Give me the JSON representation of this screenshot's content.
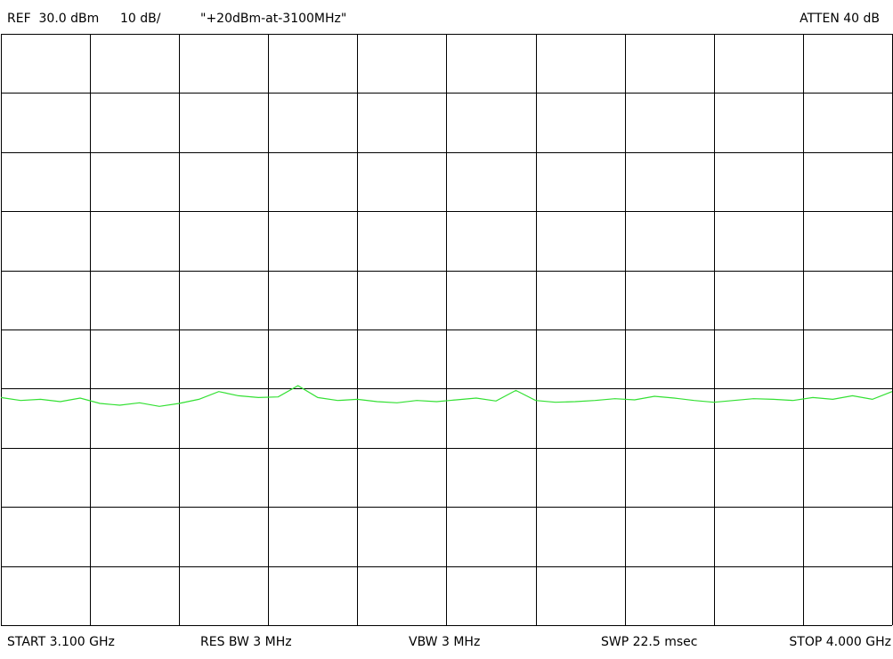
{
  "chart_data": {
    "type": "line",
    "reference_label": "REF  30.0 dBm",
    "scale_label": "10 dB/",
    "title": "\"+20dBm-at-3100MHz\"",
    "attenuation_label": "ATTEN 40 dB",
    "start_label": "START 3.100 GHz",
    "rbw_label": "RES BW 3 MHz",
    "vbw_label": "VBW 3 MHz",
    "sweep_label": "SWP 22.5 msec",
    "stop_label": "STOP 4.000 GHz",
    "xlim": [
      3.1,
      4.0
    ],
    "xticks": [
      3.1,
      3.19,
      3.28,
      3.37,
      3.46,
      3.55,
      3.64,
      3.73,
      3.82,
      3.91,
      4.0
    ],
    "ylim": [
      -70,
      30
    ],
    "yticks": [
      -70,
      -60,
      -50,
      -40,
      -30,
      -20,
      -10,
      0,
      10,
      20,
      30
    ],
    "grid": true,
    "x": [
      3.1,
      3.12,
      3.14,
      3.16,
      3.18,
      3.2,
      3.22,
      3.24,
      3.26,
      3.28,
      3.3,
      3.32,
      3.34,
      3.36,
      3.38,
      3.4,
      3.42,
      3.44,
      3.46,
      3.48,
      3.5,
      3.52,
      3.54,
      3.56,
      3.58,
      3.6,
      3.62,
      3.64,
      3.66,
      3.68,
      3.7,
      3.72,
      3.74,
      3.76,
      3.78,
      3.8,
      3.82,
      3.84,
      3.86,
      3.88,
      3.9,
      3.92,
      3.94,
      3.96,
      3.98,
      4.0
    ],
    "series": [
      {
        "color": "#33e033",
        "values": [
          -31.5,
          -32,
          -31.8,
          -32.2,
          -31.6,
          -32.5,
          -32.8,
          -32.4,
          -33,
          -32.5,
          -31.8,
          -30.5,
          -31.2,
          -31.5,
          -31.4,
          -29.5,
          -31.5,
          -32,
          -31.8,
          -32.2,
          -32.4,
          -32,
          -32.2,
          -31.9,
          -31.6,
          -32.1,
          -30.3,
          -32,
          -32.3,
          -32.2,
          -32,
          -31.7,
          -31.9,
          -31.3,
          -31.6,
          -32,
          -32.3,
          -32,
          -31.7,
          -31.8,
          -32,
          -31.5,
          -31.8,
          -31.2,
          -31.8,
          -30.5
        ]
      }
    ]
  }
}
